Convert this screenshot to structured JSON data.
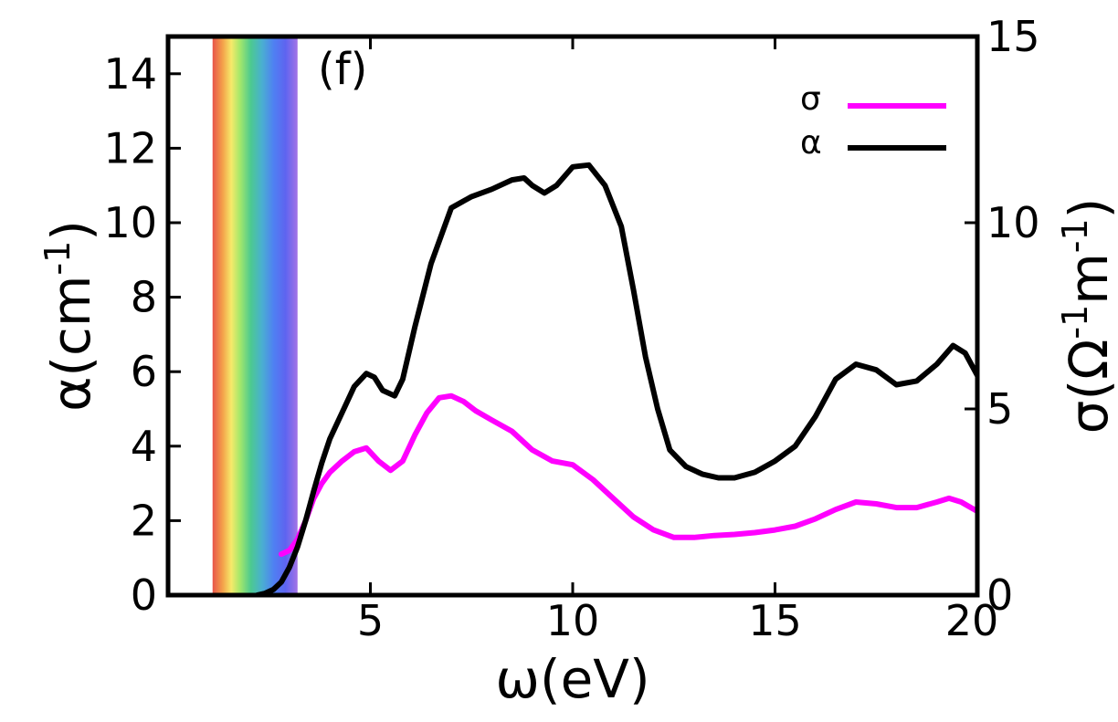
{
  "chart_data": {
    "type": "line",
    "panel_label": "(f)",
    "xlabel": "ω(eV)",
    "ylabel_left": {
      "base": "α(cm",
      "sup": "-1",
      "tail": ")"
    },
    "ylabel_right": {
      "p1": "σ(Ω",
      "s1": "-1",
      "p2": "m",
      "s2": "-1",
      "tail": ")"
    },
    "xlim": [
      0,
      20
    ],
    "ylim_left": [
      0,
      15
    ],
    "ylim_right": [
      0,
      15
    ],
    "x_ticks": [
      "5",
      "10",
      "15",
      "20"
    ],
    "y_ticks_left": [
      "0",
      "2",
      "4",
      "6",
      "8",
      "10",
      "12",
      "14"
    ],
    "y_ticks_right": [
      "5",
      "10",
      "15"
    ],
    "visible_spectrum_band": [
      1.1,
      3.2
    ],
    "legend_position": "top-right",
    "series": [
      {
        "name": "σ",
        "color": "#ff00ff",
        "axis": "right",
        "x": [
          2.8,
          3.0,
          3.2,
          3.4,
          3.6,
          3.8,
          4.0,
          4.3,
          4.6,
          4.9,
          5.2,
          5.5,
          5.8,
          6.1,
          6.4,
          6.7,
          7.0,
          7.3,
          7.6,
          8.0,
          8.5,
          9.0,
          9.5,
          10.0,
          10.5,
          11.0,
          11.5,
          12.0,
          12.5,
          13.0,
          13.5,
          14.0,
          14.5,
          15.0,
          15.5,
          16.0,
          16.5,
          17.0,
          17.5,
          18.0,
          18.5,
          19.0,
          19.3,
          19.6,
          20.0
        ],
        "values": [
          1.1,
          1.2,
          1.5,
          2.0,
          2.6,
          3.0,
          3.3,
          3.6,
          3.85,
          3.95,
          3.6,
          3.35,
          3.6,
          4.3,
          4.9,
          5.3,
          5.35,
          5.2,
          4.95,
          4.7,
          4.4,
          3.9,
          3.6,
          3.5,
          3.1,
          2.6,
          2.1,
          1.75,
          1.55,
          1.55,
          1.6,
          1.63,
          1.68,
          1.75,
          1.85,
          2.05,
          2.3,
          2.5,
          2.45,
          2.35,
          2.35,
          2.5,
          2.6,
          2.5,
          2.25
        ]
      },
      {
        "name": "α",
        "color": "#000000",
        "axis": "left",
        "x": [
          2.2,
          2.4,
          2.6,
          2.8,
          3.0,
          3.2,
          3.4,
          3.6,
          3.8,
          4.0,
          4.3,
          4.6,
          4.9,
          5.1,
          5.3,
          5.6,
          5.8,
          6.1,
          6.5,
          7.0,
          7.5,
          8.0,
          8.5,
          8.8,
          9.0,
          9.3,
          9.6,
          10.0,
          10.4,
          10.8,
          11.2,
          11.5,
          11.8,
          12.1,
          12.4,
          12.8,
          13.2,
          13.6,
          14.0,
          14.5,
          15.0,
          15.5,
          16.0,
          16.5,
          17.0,
          17.5,
          18.0,
          18.5,
          19.0,
          19.4,
          19.7,
          20.0
        ],
        "values": [
          0.0,
          0.05,
          0.15,
          0.35,
          0.75,
          1.3,
          2.0,
          2.8,
          3.55,
          4.2,
          4.9,
          5.6,
          5.95,
          5.85,
          5.5,
          5.35,
          5.8,
          7.2,
          8.9,
          10.4,
          10.7,
          10.9,
          11.15,
          11.2,
          11.0,
          10.8,
          11.0,
          11.5,
          11.55,
          11.0,
          9.9,
          8.2,
          6.4,
          5.0,
          3.9,
          3.45,
          3.25,
          3.15,
          3.15,
          3.3,
          3.6,
          4.0,
          4.8,
          5.8,
          6.2,
          6.05,
          5.65,
          5.75,
          6.2,
          6.7,
          6.5,
          5.9
        ]
      }
    ]
  }
}
